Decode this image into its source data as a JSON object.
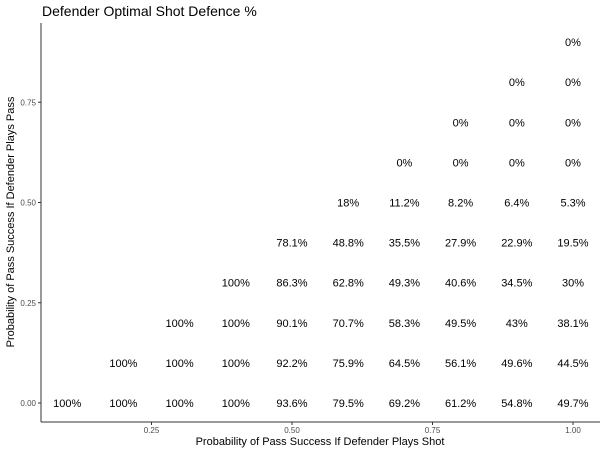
{
  "chart_data": {
    "type": "scatter",
    "title": "Defender Optimal Shot Defence %",
    "xlabel": "Probability of Pass Success If Defender Plays Shot",
    "ylabel": "Probability of Pass Success If Defender Plays Pass",
    "xlim": [
      0.1,
      1.0
    ],
    "ylim": [
      0.0,
      0.9
    ],
    "xticks": [
      "0.25",
      "0.50",
      "0.75",
      "1.00"
    ],
    "yticks": [
      "0.00",
      "0.25",
      "0.50",
      "0.75"
    ],
    "grid": false,
    "points": [
      {
        "x": 1.0,
        "y": 0.9,
        "label": "0%"
      },
      {
        "x": 0.9,
        "y": 0.8,
        "label": "0%"
      },
      {
        "x": 1.0,
        "y": 0.8,
        "label": "0%"
      },
      {
        "x": 0.8,
        "y": 0.7,
        "label": "0%"
      },
      {
        "x": 0.9,
        "y": 0.7,
        "label": "0%"
      },
      {
        "x": 1.0,
        "y": 0.7,
        "label": "0%"
      },
      {
        "x": 0.7,
        "y": 0.6,
        "label": "0%"
      },
      {
        "x": 0.8,
        "y": 0.6,
        "label": "0%"
      },
      {
        "x": 0.9,
        "y": 0.6,
        "label": "0%"
      },
      {
        "x": 1.0,
        "y": 0.6,
        "label": "0%"
      },
      {
        "x": 0.6,
        "y": 0.5,
        "label": "18%"
      },
      {
        "x": 0.7,
        "y": 0.5,
        "label": "11.2%"
      },
      {
        "x": 0.8,
        "y": 0.5,
        "label": "8.2%"
      },
      {
        "x": 0.9,
        "y": 0.5,
        "label": "6.4%"
      },
      {
        "x": 1.0,
        "y": 0.5,
        "label": "5.3%"
      },
      {
        "x": 0.5,
        "y": 0.4,
        "label": "78.1%"
      },
      {
        "x": 0.6,
        "y": 0.4,
        "label": "48.8%"
      },
      {
        "x": 0.7,
        "y": 0.4,
        "label": "35.5%"
      },
      {
        "x": 0.8,
        "y": 0.4,
        "label": "27.9%"
      },
      {
        "x": 0.9,
        "y": 0.4,
        "label": "22.9%"
      },
      {
        "x": 1.0,
        "y": 0.4,
        "label": "19.5%"
      },
      {
        "x": 0.4,
        "y": 0.3,
        "label": "100%"
      },
      {
        "x": 0.5,
        "y": 0.3,
        "label": "86.3%"
      },
      {
        "x": 0.6,
        "y": 0.3,
        "label": "62.8%"
      },
      {
        "x": 0.7,
        "y": 0.3,
        "label": "49.3%"
      },
      {
        "x": 0.8,
        "y": 0.3,
        "label": "40.6%"
      },
      {
        "x": 0.9,
        "y": 0.3,
        "label": "34.5%"
      },
      {
        "x": 1.0,
        "y": 0.3,
        "label": "30%"
      },
      {
        "x": 0.3,
        "y": 0.2,
        "label": "100%"
      },
      {
        "x": 0.4,
        "y": 0.2,
        "label": "100%"
      },
      {
        "x": 0.5,
        "y": 0.2,
        "label": "90.1%"
      },
      {
        "x": 0.6,
        "y": 0.2,
        "label": "70.7%"
      },
      {
        "x": 0.7,
        "y": 0.2,
        "label": "58.3%"
      },
      {
        "x": 0.8,
        "y": 0.2,
        "label": "49.5%"
      },
      {
        "x": 0.9,
        "y": 0.2,
        "label": "43%"
      },
      {
        "x": 1.0,
        "y": 0.2,
        "label": "38.1%"
      },
      {
        "x": 0.2,
        "y": 0.1,
        "label": "100%"
      },
      {
        "x": 0.3,
        "y": 0.1,
        "label": "100%"
      },
      {
        "x": 0.4,
        "y": 0.1,
        "label": "100%"
      },
      {
        "x": 0.5,
        "y": 0.1,
        "label": "92.2%"
      },
      {
        "x": 0.6,
        "y": 0.1,
        "label": "75.9%"
      },
      {
        "x": 0.7,
        "y": 0.1,
        "label": "64.5%"
      },
      {
        "x": 0.8,
        "y": 0.1,
        "label": "56.1%"
      },
      {
        "x": 0.9,
        "y": 0.1,
        "label": "49.6%"
      },
      {
        "x": 1.0,
        "y": 0.1,
        "label": "44.5%"
      },
      {
        "x": 0.1,
        "y": 0.0,
        "label": "100%"
      },
      {
        "x": 0.2,
        "y": 0.0,
        "label": "100%"
      },
      {
        "x": 0.3,
        "y": 0.0,
        "label": "100%"
      },
      {
        "x": 0.4,
        "y": 0.0,
        "label": "100%"
      },
      {
        "x": 0.5,
        "y": 0.0,
        "label": "93.6%"
      },
      {
        "x": 0.6,
        "y": 0.0,
        "label": "79.5%"
      },
      {
        "x": 0.7,
        "y": 0.0,
        "label": "69.2%"
      },
      {
        "x": 0.8,
        "y": 0.0,
        "label": "61.2%"
      },
      {
        "x": 0.9,
        "y": 0.0,
        "label": "54.8%"
      },
      {
        "x": 1.0,
        "y": 0.0,
        "label": "49.7%"
      }
    ]
  }
}
